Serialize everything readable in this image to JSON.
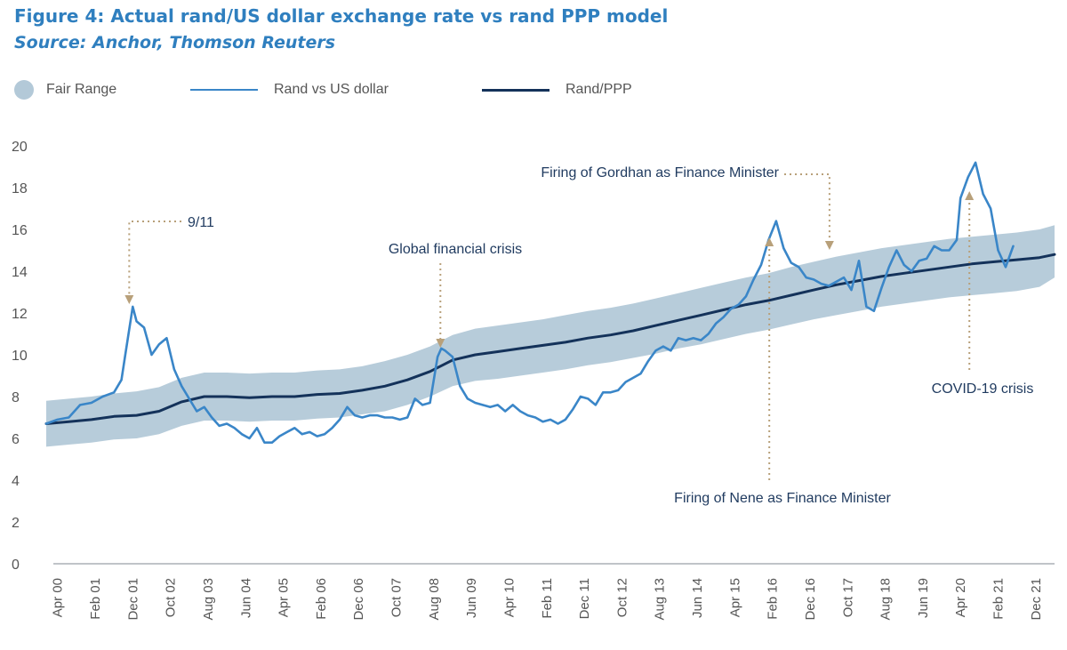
{
  "title": "Figure 4: Actual rand/US dollar exchange rate vs rand PPP model",
  "subtitle": "Source: Anchor, Thomson Reuters",
  "colors": {
    "title": "#2f7fbf",
    "fair_range": "#b3c9d8",
    "rand_usd": "#3a86c8",
    "ppp": "#14325a",
    "annotation_arrow": "#b8a07a",
    "annotation_text": "#1f3a5f",
    "axis_text": "#555555"
  },
  "chart_data": {
    "type": "line",
    "title": "Figure 4: Actual rand/US dollar exchange rate vs rand PPP model",
    "xlabel": "",
    "ylabel": "",
    "ylim": [
      0,
      20
    ],
    "yticks": [
      0,
      2,
      4,
      6,
      8,
      10,
      12,
      14,
      16,
      18,
      20
    ],
    "xlim": [
      "2000-01",
      "2022-05"
    ],
    "x_tick_labels": [
      {
        "label": "Apr 00",
        "date": "2000-04"
      },
      {
        "label": "Feb 01",
        "date": "2001-02"
      },
      {
        "label": "Dec 01",
        "date": "2001-12"
      },
      {
        "label": "Oct 02",
        "date": "2002-10"
      },
      {
        "label": "Aug 03",
        "date": "2003-08"
      },
      {
        "label": "Jun 04",
        "date": "2004-06"
      },
      {
        "label": "Apr 05",
        "date": "2005-04"
      },
      {
        "label": "Feb 06",
        "date": "2006-02"
      },
      {
        "label": "Dec 06",
        "date": "2006-12"
      },
      {
        "label": "Oct 07",
        "date": "2007-10"
      },
      {
        "label": "Aug 08",
        "date": "2008-08"
      },
      {
        "label": "Jun 09",
        "date": "2009-06"
      },
      {
        "label": "Apr 10",
        "date": "2010-04"
      },
      {
        "label": "Feb 11",
        "date": "2011-02"
      },
      {
        "label": "Dec 11",
        "date": "2011-12"
      },
      {
        "label": "Oct 12",
        "date": "2012-10"
      },
      {
        "label": "Aug 13",
        "date": "2013-08"
      },
      {
        "label": "Jun 14",
        "date": "2014-06"
      },
      {
        "label": "Apr 15",
        "date": "2015-04"
      },
      {
        "label": "Feb 16",
        "date": "2016-02"
      },
      {
        "label": "Dec 16",
        "date": "2016-12"
      },
      {
        "label": "Oct 17",
        "date": "2017-10"
      },
      {
        "label": "Aug 18",
        "date": "2018-08"
      },
      {
        "label": "Jun 19",
        "date": "2019-06"
      },
      {
        "label": "Apr 20",
        "date": "2020-04"
      },
      {
        "label": "Feb 21",
        "date": "2021-02"
      },
      {
        "label": "Dec 21",
        "date": "2021-12"
      }
    ],
    "legend": [
      {
        "label": "Fair Range",
        "kind": "band"
      },
      {
        "label": "Rand vs US dollar",
        "kind": "line"
      },
      {
        "label": "Rand/PPP",
        "kind": "line"
      }
    ],
    "legend_position": "top",
    "grid": false,
    "series": [
      {
        "name": "Rand/PPP",
        "x": [
          "2000-01",
          "2000-07",
          "2001-01",
          "2001-07",
          "2002-01",
          "2002-07",
          "2003-01",
          "2003-07",
          "2004-01",
          "2004-07",
          "2005-01",
          "2005-07",
          "2006-01",
          "2006-07",
          "2007-01",
          "2007-07",
          "2008-01",
          "2008-07",
          "2009-01",
          "2009-07",
          "2010-01",
          "2010-07",
          "2011-01",
          "2011-07",
          "2012-01",
          "2012-07",
          "2013-01",
          "2013-07",
          "2014-01",
          "2014-07",
          "2015-01",
          "2015-07",
          "2016-01",
          "2016-07",
          "2017-01",
          "2017-07",
          "2018-01",
          "2018-07",
          "2019-01",
          "2019-07",
          "2020-01",
          "2020-07",
          "2021-01",
          "2021-07",
          "2022-01",
          "2022-05"
        ],
        "values": [
          6.7,
          6.8,
          6.9,
          7.05,
          7.1,
          7.3,
          7.75,
          8.0,
          8.0,
          7.95,
          8.0,
          8.0,
          8.1,
          8.15,
          8.3,
          8.5,
          8.8,
          9.2,
          9.75,
          10.0,
          10.15,
          10.3,
          10.45,
          10.6,
          10.8,
          10.95,
          11.15,
          11.4,
          11.65,
          11.9,
          12.15,
          12.4,
          12.6,
          12.85,
          13.1,
          13.35,
          13.55,
          13.75,
          13.9,
          14.05,
          14.2,
          14.35,
          14.45,
          14.55,
          14.65,
          14.8
        ]
      },
      {
        "name": "Fair Range",
        "x": [
          "2000-01",
          "2000-07",
          "2001-01",
          "2001-07",
          "2002-01",
          "2002-07",
          "2003-01",
          "2003-07",
          "2004-01",
          "2004-07",
          "2005-01",
          "2005-07",
          "2006-01",
          "2006-07",
          "2007-01",
          "2007-07",
          "2008-01",
          "2008-07",
          "2009-01",
          "2009-07",
          "2010-01",
          "2010-07",
          "2011-01",
          "2011-07",
          "2012-01",
          "2012-07",
          "2013-01",
          "2013-07",
          "2014-01",
          "2014-07",
          "2015-01",
          "2015-07",
          "2016-01",
          "2016-07",
          "2017-01",
          "2017-07",
          "2018-01",
          "2018-07",
          "2019-01",
          "2019-07",
          "2020-01",
          "2020-07",
          "2021-01",
          "2021-07",
          "2022-01",
          "2022-05"
        ],
        "lower": [
          5.6,
          5.7,
          5.8,
          5.95,
          6.0,
          6.2,
          6.6,
          6.85,
          6.85,
          6.8,
          6.85,
          6.85,
          6.95,
          7.0,
          7.15,
          7.3,
          7.6,
          8.0,
          8.5,
          8.75,
          8.85,
          9.0,
          9.15,
          9.3,
          9.5,
          9.65,
          9.85,
          10.05,
          10.3,
          10.5,
          10.75,
          11.0,
          11.2,
          11.45,
          11.7,
          11.9,
          12.1,
          12.3,
          12.45,
          12.6,
          12.75,
          12.85,
          12.95,
          13.05,
          13.25,
          13.7
        ],
        "upper": [
          7.8,
          7.9,
          8.0,
          8.15,
          8.25,
          8.45,
          8.9,
          9.15,
          9.15,
          9.1,
          9.15,
          9.15,
          9.25,
          9.3,
          9.45,
          9.7,
          10.0,
          10.4,
          10.95,
          11.25,
          11.4,
          11.55,
          11.7,
          11.9,
          12.1,
          12.25,
          12.45,
          12.7,
          12.95,
          13.2,
          13.45,
          13.7,
          13.9,
          14.2,
          14.45,
          14.7,
          14.9,
          15.1,
          15.25,
          15.4,
          15.55,
          15.65,
          15.75,
          15.85,
          16.0,
          16.2
        ]
      },
      {
        "name": "Rand vs US dollar",
        "x": [
          "2000-01",
          "2000-04",
          "2000-07",
          "2000-10",
          "2001-01",
          "2001-04",
          "2001-07",
          "2001-09",
          "2001-10",
          "2001-12",
          "2002-01",
          "2002-03",
          "2002-05",
          "2002-07",
          "2002-09",
          "2002-11",
          "2003-01",
          "2003-03",
          "2003-05",
          "2003-07",
          "2003-09",
          "2003-11",
          "2004-01",
          "2004-03",
          "2004-05",
          "2004-07",
          "2004-09",
          "2004-11",
          "2005-01",
          "2005-03",
          "2005-05",
          "2005-07",
          "2005-09",
          "2005-11",
          "2006-01",
          "2006-03",
          "2006-05",
          "2006-07",
          "2006-09",
          "2006-11",
          "2007-01",
          "2007-03",
          "2007-05",
          "2007-07",
          "2007-09",
          "2007-11",
          "2008-01",
          "2008-03",
          "2008-05",
          "2008-07",
          "2008-09",
          "2008-10",
          "2008-11",
          "2009-01",
          "2009-03",
          "2009-05",
          "2009-07",
          "2009-09",
          "2009-11",
          "2010-01",
          "2010-03",
          "2010-05",
          "2010-07",
          "2010-09",
          "2010-11",
          "2011-01",
          "2011-03",
          "2011-05",
          "2011-07",
          "2011-09",
          "2011-11",
          "2012-01",
          "2012-03",
          "2012-05",
          "2012-07",
          "2012-09",
          "2012-11",
          "2013-01",
          "2013-03",
          "2013-05",
          "2013-07",
          "2013-09",
          "2013-11",
          "2014-01",
          "2014-03",
          "2014-05",
          "2014-07",
          "2014-09",
          "2014-11",
          "2015-01",
          "2015-03",
          "2015-05",
          "2015-07",
          "2015-09",
          "2015-11",
          "2016-01",
          "2016-03",
          "2016-05",
          "2016-07",
          "2016-09",
          "2016-11",
          "2017-01",
          "2017-03",
          "2017-05",
          "2017-07",
          "2017-09",
          "2017-11",
          "2018-01",
          "2018-03",
          "2018-05",
          "2018-07",
          "2018-09",
          "2018-11",
          "2019-01",
          "2019-03",
          "2019-05",
          "2019-07",
          "2019-09",
          "2019-11",
          "2020-01",
          "2020-03",
          "2020-04",
          "2020-06",
          "2020-08",
          "2020-10",
          "2020-12",
          "2021-02",
          "2021-04",
          "2021-06"
        ],
        "values": [
          6.7,
          6.9,
          7.0,
          7.6,
          7.7,
          8.0,
          8.2,
          8.8,
          10.0,
          12.3,
          11.6,
          11.3,
          10.0,
          10.5,
          10.8,
          9.3,
          8.5,
          7.9,
          7.3,
          7.5,
          7.0,
          6.6,
          6.7,
          6.5,
          6.2,
          6.0,
          6.5,
          5.8,
          5.8,
          6.1,
          6.3,
          6.5,
          6.2,
          6.3,
          6.1,
          6.2,
          6.5,
          6.9,
          7.5,
          7.1,
          7.0,
          7.1,
          7.1,
          7.0,
          7.0,
          6.9,
          7.0,
          7.9,
          7.6,
          7.7,
          9.9,
          10.3,
          10.2,
          9.9,
          8.5,
          7.9,
          7.7,
          7.6,
          7.5,
          7.6,
          7.3,
          7.6,
          7.3,
          7.1,
          7.0,
          6.8,
          6.9,
          6.7,
          6.9,
          7.4,
          8.0,
          7.9,
          7.6,
          8.2,
          8.2,
          8.3,
          8.7,
          8.9,
          9.1,
          9.7,
          10.2,
          10.4,
          10.2,
          10.8,
          10.7,
          10.8,
          10.7,
          11.0,
          11.5,
          11.8,
          12.2,
          12.4,
          12.8,
          13.6,
          14.3,
          15.5,
          16.4,
          15.1,
          14.4,
          14.2,
          13.7,
          13.6,
          13.4,
          13.3,
          13.5,
          13.7,
          13.1,
          14.5,
          12.3,
          12.1,
          13.2,
          14.2,
          15.0,
          14.3,
          14.0,
          14.5,
          14.6,
          15.2,
          15.0,
          15.0,
          15.5,
          17.5,
          18.5,
          19.2,
          17.7,
          17.0,
          15.0,
          14.2,
          15.2
        ]
      }
    ]
  },
  "annotations": [
    {
      "label": "9/11",
      "date": "2001-12",
      "value": 12.3
    },
    {
      "label": "Global financial crisis",
      "date": "2008-10",
      "value": 10.3
    },
    {
      "label": "Firing of Nene as Finance Minister",
      "date": "2015-12",
      "value": 16.5
    },
    {
      "label": "Firing of Gordhan as Finance Minister",
      "date": "2017-04",
      "value": 14.3
    },
    {
      "label": "COVID-19 crisis",
      "date": "2020-04",
      "value": 18.5
    }
  ]
}
